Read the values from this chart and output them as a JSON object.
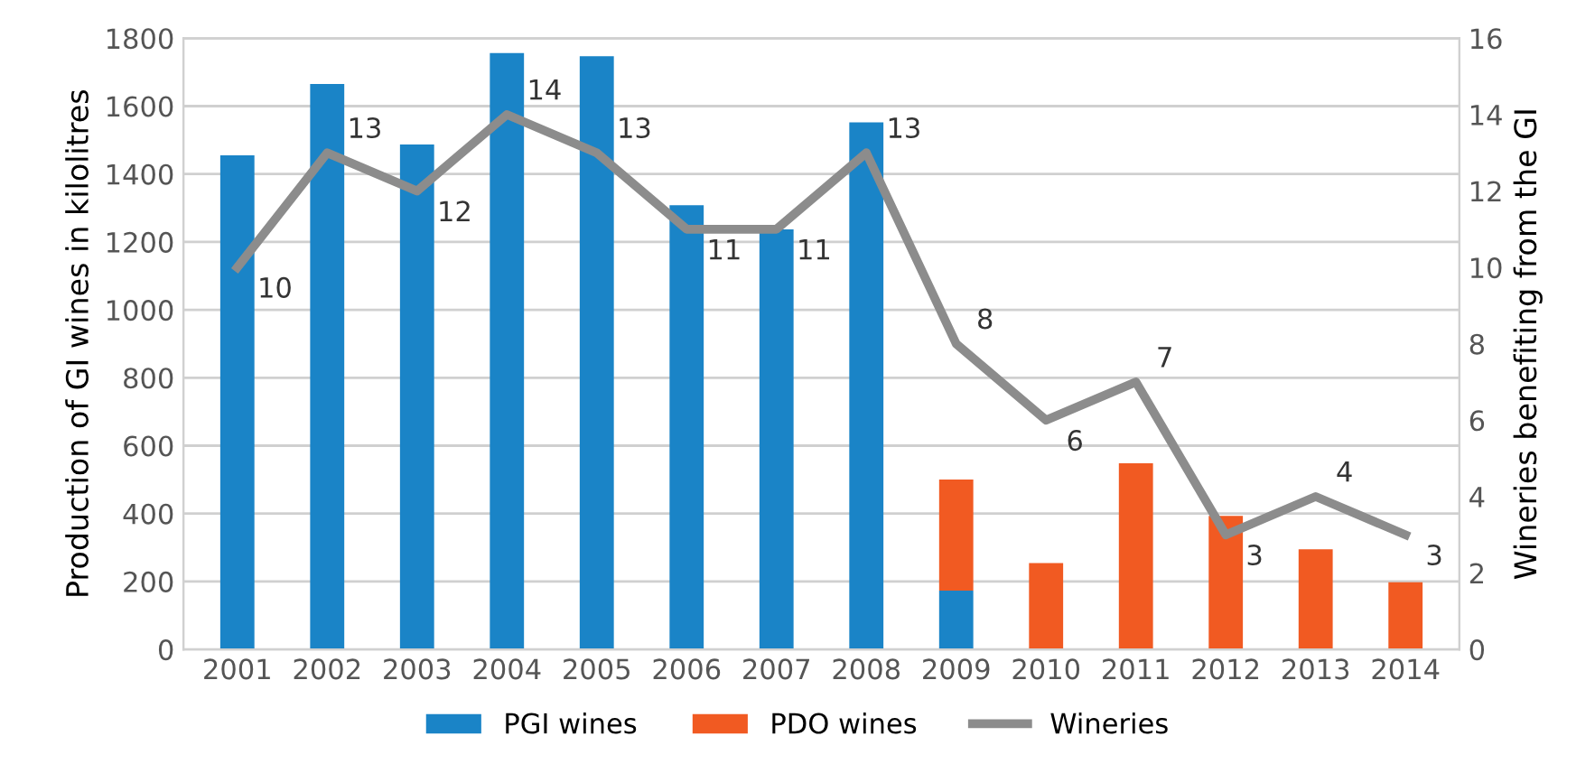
{
  "chart_data": {
    "type": "bar",
    "stacked": true,
    "categories": [
      "2001",
      "2002",
      "2003",
      "2004",
      "2005",
      "2006",
      "2007",
      "2008",
      "2009",
      "2010",
      "2011",
      "2012",
      "2013",
      "2014"
    ],
    "ylabel": "Production of GI wines in kilolitres",
    "y2label": "Wineries benefiting from the GI",
    "ylim": [
      0,
      1800
    ],
    "yticks": [
      0,
      200,
      400,
      600,
      800,
      1000,
      1200,
      1400,
      1600,
      1800
    ],
    "y2lim": [
      0,
      16
    ],
    "y2ticks": [
      0,
      2,
      4,
      6,
      8,
      10,
      12,
      14,
      16
    ],
    "grid": "y",
    "legend": "bottom",
    "series": [
      {
        "name": "PGI wines",
        "color": "#1a84c7",
        "values": [
          1455,
          1665,
          1487,
          1756,
          1747,
          1308,
          1237,
          1552,
          173,
          null,
          null,
          null,
          null,
          null
        ]
      },
      {
        "name": "PDO wines",
        "color": "#f15a22",
        "values": [
          null,
          null,
          null,
          null,
          null,
          null,
          null,
          null,
          327,
          254,
          548,
          393,
          295,
          198
        ]
      },
      {
        "name": "Wineries",
        "type": "line",
        "axis": "y2",
        "color": "#8c8c8c",
        "marker": "none",
        "values": [
          10,
          13,
          12,
          14,
          13,
          11,
          11,
          13,
          8,
          6,
          7,
          3,
          4,
          3
        ],
        "value_labels": [
          "10",
          "13",
          "12",
          "14",
          "13",
          "11",
          "11",
          "13",
          "8",
          "6",
          "7",
          "3",
          "4",
          "3"
        ]
      }
    ]
  }
}
